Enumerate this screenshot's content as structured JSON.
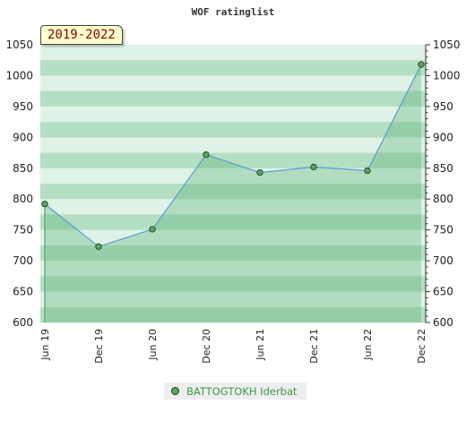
{
  "chart_data": {
    "type": "area",
    "title": "WOF ratinglist",
    "period": "2019-2022",
    "x": [
      "Jun 19",
      "Dec 19",
      "Jun 20",
      "Dec 20",
      "Jun 21",
      "Dec 21",
      "Jun 22",
      "Dec 22"
    ],
    "series": [
      {
        "name": "BATTOGTOKH Iderbat",
        "values": [
          792,
          723,
          751,
          872,
          843,
          852,
          846,
          1018
        ]
      }
    ],
    "ylim": [
      600,
      1050
    ],
    "yticks": [
      600,
      650,
      700,
      750,
      800,
      850,
      900,
      950,
      1000,
      1050
    ],
    "grid": true,
    "legend": "bottom-center",
    "colors": {
      "line": "#5b9bd5",
      "marker": "#5aa85a",
      "band_dark": "#b4dfc3",
      "band_light": "#dff2e6",
      "area": "rgba(80,175,110,0.32)"
    }
  }
}
